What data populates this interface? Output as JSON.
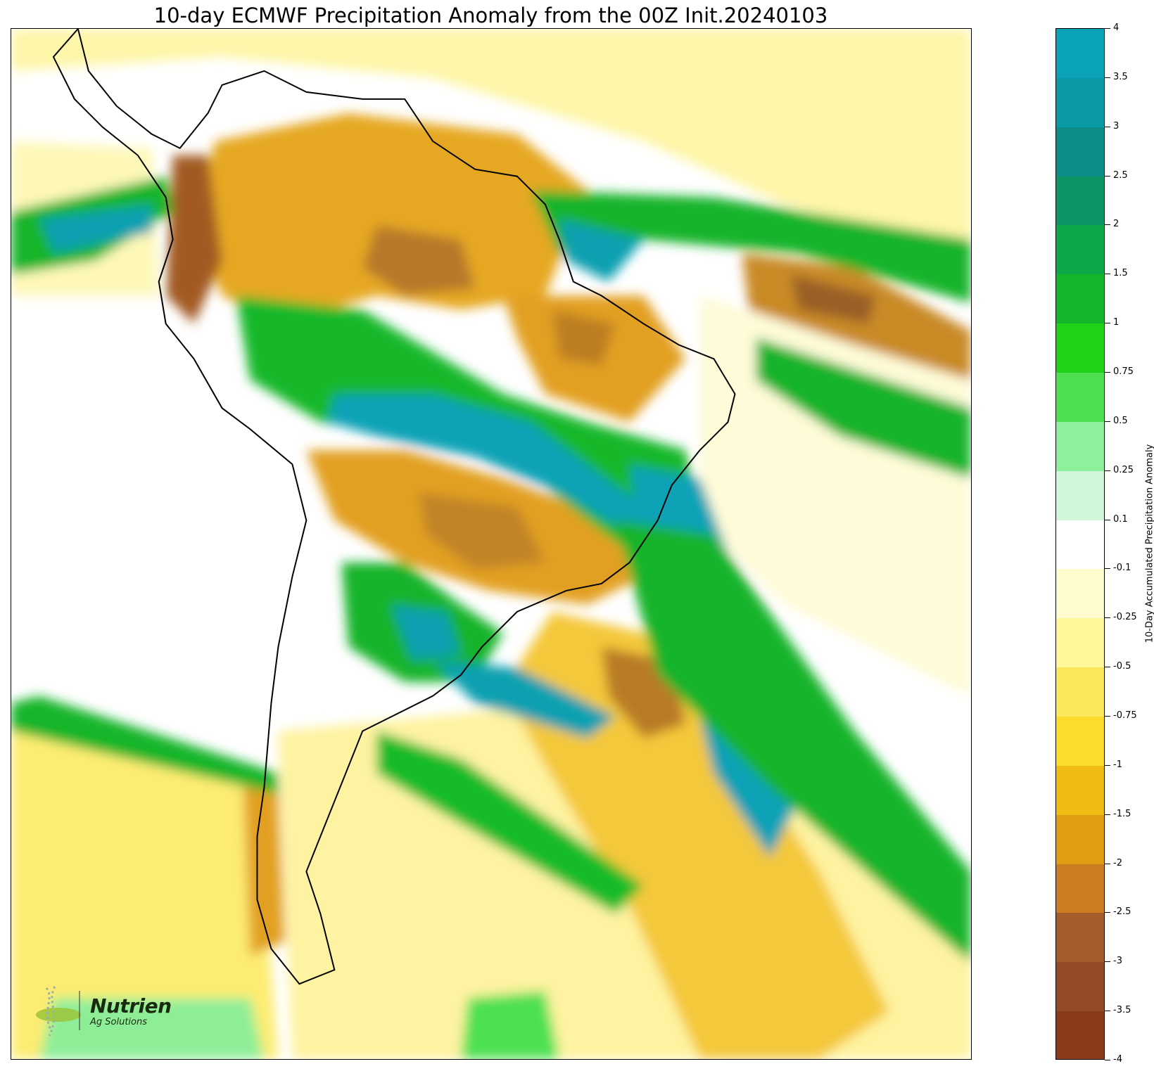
{
  "title": "10-day ECMWF Precipitation Anomaly from the 00Z Init.20240103",
  "colorbar": {
    "label": "10-Day Accumulated Precipitation Anomaly",
    "ticks": [
      "4",
      "3.5",
      "3",
      "2.5",
      "2",
      "1.5",
      "1",
      "0.75",
      "0.5",
      "0.25",
      "0.1",
      "-0.1",
      "-0.25",
      "-0.5",
      "-0.75",
      "-1",
      "-1.5",
      "-2",
      "-2.5",
      "-3",
      "-3.5",
      "-4"
    ],
    "colors": [
      "#0aa3b8",
      "#0a9aa5",
      "#0e8d8a",
      "#0e9566",
      "#0da848",
      "#12b82a",
      "#1ed218",
      "#4ee052",
      "#8ef09a",
      "#d2f6d9",
      "#ffffff",
      "#fefbce",
      "#fff79a",
      "#fde85c",
      "#fbdb2c",
      "#f0bb12",
      "#e09e14",
      "#c97c20",
      "#a45c2a",
      "#944a26",
      "#8c3a1c"
    ]
  },
  "logo": {
    "brand": "Nutrien",
    "sub": "Ag Solutions"
  }
}
